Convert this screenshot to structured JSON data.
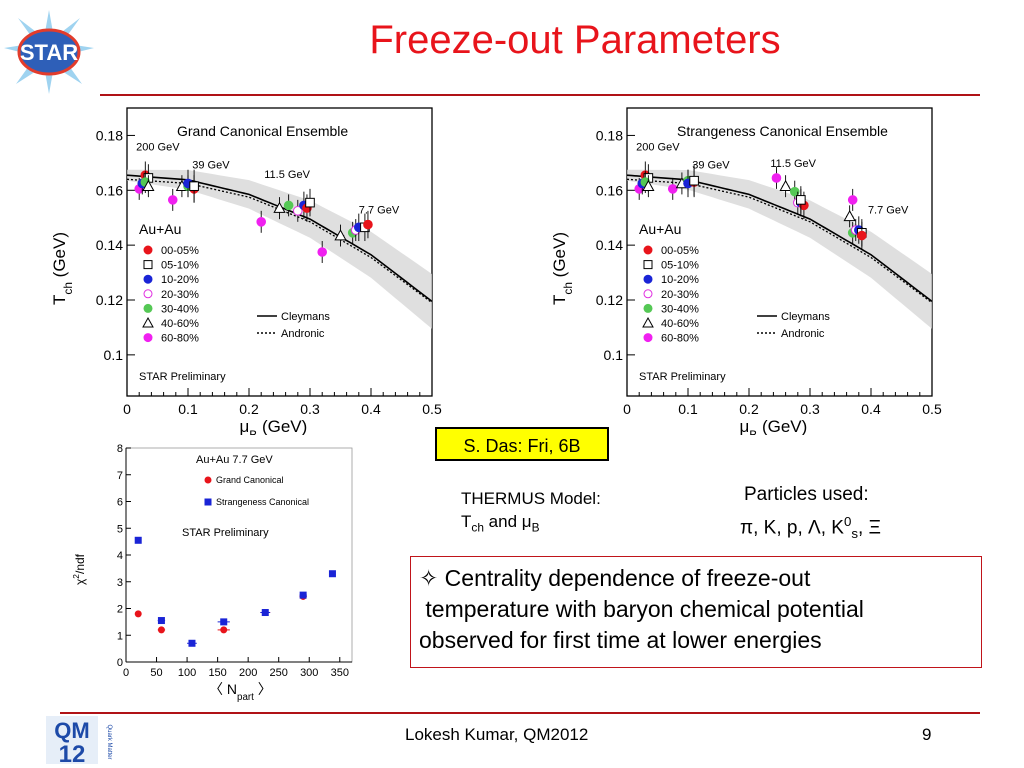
{
  "slide": {
    "title": "Freeze-out Parameters",
    "footer_author": "Lokesh Kumar, QM2012",
    "page_number": "9",
    "accent_color": "#e8141b"
  },
  "logos": {
    "star": "STAR",
    "qm": "QM",
    "qm_year": "12",
    "qm_side": "Quark Matter"
  },
  "talk_box": "S. Das: Fri, 6B",
  "thermus": {
    "line1": "THERMUS Model:",
    "t": "T",
    "t_sub": "ch",
    "and": " and ",
    "mu": "μ",
    "mu_sub": "B"
  },
  "particles": {
    "heading": "Particles used:",
    "p1": "π, K, p, Λ, K",
    "k0_sup": "0",
    "k0_sub": "s",
    "p2": ", Ξ"
  },
  "summary": {
    "bullet": "✧",
    "line1": " Centrality dependence of freeze-out",
    "line2": " temperature with baryon chemical potential",
    "line3": "observed for first time at lower energies"
  },
  "chart_data": [
    {
      "type": "scatter",
      "title": "Grand Canonical Ensemble",
      "xlabel": "μ",
      "xlabel_sub": "B",
      "xlabel_unit": " (GeV)",
      "ylabel": "T",
      "ylabel_sub": "ch",
      "ylabel_unit": " (GeV)",
      "xlim": [
        0,
        0.5
      ],
      "ylim": [
        0.085,
        0.19
      ],
      "xticks": [
        0,
        0.1,
        0.2,
        0.3,
        0.4,
        0.5
      ],
      "xtick_labels": [
        "0",
        "0.1",
        "0.2",
        "0.3",
        "0.4",
        "0.5"
      ],
      "yticks": [
        0.1,
        0.12,
        0.14,
        0.16,
        0.18
      ],
      "ytick_labels": [
        "0.1",
        "0.12",
        "0.14",
        "0.16",
        "0.18"
      ],
      "system": "Au+Au",
      "preliminary": "STAR Preliminary",
      "energy_labels": [
        {
          "text": "200 GeV",
          "x": 0.015,
          "y": 0.1745
        },
        {
          "text": "39 GeV",
          "x": 0.107,
          "y": 0.168
        },
        {
          "text": "11.5 GeV",
          "x": 0.225,
          "y": 0.1645
        },
        {
          "text": "7.7 GeV",
          "x": 0.38,
          "y": 0.1515
        }
      ],
      "legend": {
        "entries": [
          {
            "label": "00-05%",
            "marker": "circle",
            "filled": true,
            "color": "#e8141b"
          },
          {
            "label": "05-10%",
            "marker": "square",
            "filled": false,
            "color": "#000000"
          },
          {
            "label": "10-20%",
            "marker": "circle",
            "filled": true,
            "color": "#1a24d6"
          },
          {
            "label": "20-30%",
            "marker": "circle",
            "filled": false,
            "color": "#e030e0"
          },
          {
            "label": "30-40%",
            "marker": "circle",
            "filled": true,
            "color": "#55c855"
          },
          {
            "label": "40-60%",
            "marker": "triangle",
            "filled": false,
            "color": "#000000"
          },
          {
            "label": "60-80%",
            "marker": "circle",
            "filled": true,
            "color": "#f020f0"
          }
        ],
        "models": [
          {
            "label": "Cleymans",
            "style": "solid"
          },
          {
            "label": "Andronic",
            "style": "dotted"
          }
        ]
      },
      "curve_solid": [
        [
          0,
          0.1655
        ],
        [
          0.1,
          0.1638
        ],
        [
          0.2,
          0.1585
        ],
        [
          0.3,
          0.1495
        ],
        [
          0.4,
          0.1365
        ],
        [
          0.5,
          0.1195
        ]
      ],
      "curve_dotted": [
        [
          0,
          0.164
        ],
        [
          0.1,
          0.1625
        ],
        [
          0.2,
          0.1575
        ],
        [
          0.3,
          0.1485
        ],
        [
          0.4,
          0.1355
        ],
        [
          0.5,
          0.119
        ]
      ],
      "band_width": [
        0.002,
        0.01
      ],
      "points": [
        {
          "x": 0.02,
          "y": 0.1605,
          "c": 6,
          "ex": 0.004,
          "ey": 0.004
        },
        {
          "x": 0.025,
          "y": 0.1625,
          "c": 2,
          "ex": 0.004,
          "ey": 0.004
        },
        {
          "x": 0.03,
          "y": 0.1655,
          "c": 0,
          "ex": 0.004,
          "ey": 0.005
        },
        {
          "x": 0.035,
          "y": 0.1645,
          "c": 1,
          "ex": 0.004,
          "ey": 0.005
        },
        {
          "x": 0.03,
          "y": 0.163,
          "c": 4,
          "ex": 0.004,
          "ey": 0.004
        },
        {
          "x": 0.035,
          "y": 0.1615,
          "c": 5,
          "ex": 0.004,
          "ey": 0.004
        },
        {
          "x": 0.075,
          "y": 0.1565,
          "c": 6,
          "ex": 0.005,
          "ey": 0.004
        },
        {
          "x": 0.09,
          "y": 0.1615,
          "c": 5,
          "ex": 0.004,
          "ey": 0.004
        },
        {
          "x": 0.1,
          "y": 0.1615,
          "c": 4,
          "ex": 0.004,
          "ey": 0.004
        },
        {
          "x": 0.1,
          "y": 0.1625,
          "c": 2,
          "ex": 0.004,
          "ey": 0.005
        },
        {
          "x": 0.11,
          "y": 0.1605,
          "c": 0,
          "ex": 0.004,
          "ey": 0.005
        },
        {
          "x": 0.11,
          "y": 0.1615,
          "c": 1,
          "ex": 0.004,
          "ey": 0.006
        },
        {
          "x": 0.22,
          "y": 0.1485,
          "c": 6,
          "ex": 0.006,
          "ey": 0.004
        },
        {
          "x": 0.25,
          "y": 0.1535,
          "c": 5,
          "ex": 0.006,
          "ey": 0.004
        },
        {
          "x": 0.265,
          "y": 0.1545,
          "c": 4,
          "ex": 0.006,
          "ey": 0.004
        },
        {
          "x": 0.28,
          "y": 0.1525,
          "c": 3,
          "ex": 0.006,
          "ey": 0.004
        },
        {
          "x": 0.29,
          "y": 0.1545,
          "c": 2,
          "ex": 0.006,
          "ey": 0.005
        },
        {
          "x": 0.295,
          "y": 0.1535,
          "c": 0,
          "ex": 0.006,
          "ey": 0.005
        },
        {
          "x": 0.3,
          "y": 0.1555,
          "c": 1,
          "ex": 0.006,
          "ey": 0.005
        },
        {
          "x": 0.32,
          "y": 0.1375,
          "c": 6,
          "ex": 0.006,
          "ey": 0.004
        },
        {
          "x": 0.35,
          "y": 0.1435,
          "c": 5,
          "ex": 0.006,
          "ey": 0.004
        },
        {
          "x": 0.37,
          "y": 0.1445,
          "c": 4,
          "ex": 0.006,
          "ey": 0.004
        },
        {
          "x": 0.375,
          "y": 0.1455,
          "c": 3,
          "ex": 0.006,
          "ey": 0.004
        },
        {
          "x": 0.38,
          "y": 0.1465,
          "c": 2,
          "ex": 0.006,
          "ey": 0.005
        },
        {
          "x": 0.39,
          "y": 0.1465,
          "c": 1,
          "ex": 0.006,
          "ey": 0.005
        },
        {
          "x": 0.395,
          "y": 0.1475,
          "c": 0,
          "ex": 0.006,
          "ey": 0.005
        }
      ]
    },
    {
      "type": "scatter",
      "title": "Strangeness Canonical Ensemble",
      "xlabel": "μ",
      "xlabel_sub": "B",
      "xlabel_unit": " (GeV)",
      "ylabel": "T",
      "ylabel_sub": "ch",
      "ylabel_unit": " (GeV)",
      "xlim": [
        0,
        0.5
      ],
      "ylim": [
        0.085,
        0.19
      ],
      "xticks": [
        0,
        0.1,
        0.2,
        0.3,
        0.4,
        0.5
      ],
      "xtick_labels": [
        "0",
        "0.1",
        "0.2",
        "0.3",
        "0.4",
        "0.5"
      ],
      "yticks": [
        0.1,
        0.12,
        0.14,
        0.16,
        0.18
      ],
      "ytick_labels": [
        "0.1",
        "0.12",
        "0.14",
        "0.16",
        "0.18"
      ],
      "system": "Au+Au",
      "preliminary": "STAR Preliminary",
      "energy_labels": [
        {
          "text": "200 GeV",
          "x": 0.015,
          "y": 0.1745
        },
        {
          "text": "39 GeV",
          "x": 0.107,
          "y": 0.168
        },
        {
          "text": "11.5 GeV",
          "x": 0.235,
          "y": 0.1685
        },
        {
          "text": "7.7 GeV",
          "x": 0.395,
          "y": 0.1515
        }
      ],
      "legend": {
        "entries": [
          {
            "label": "00-05%",
            "marker": "circle",
            "filled": true,
            "color": "#e8141b"
          },
          {
            "label": "05-10%",
            "marker": "square",
            "filled": false,
            "color": "#000000"
          },
          {
            "label": "10-20%",
            "marker": "circle",
            "filled": true,
            "color": "#1a24d6"
          },
          {
            "label": "20-30%",
            "marker": "circle",
            "filled": false,
            "color": "#e030e0"
          },
          {
            "label": "30-40%",
            "marker": "circle",
            "filled": true,
            "color": "#55c855"
          },
          {
            "label": "40-60%",
            "marker": "triangle",
            "filled": false,
            "color": "#000000"
          },
          {
            "label": "60-80%",
            "marker": "circle",
            "filled": true,
            "color": "#f020f0"
          }
        ],
        "models": [
          {
            "label": "Cleymans",
            "style": "solid"
          },
          {
            "label": "Andronic",
            "style": "dotted"
          }
        ]
      },
      "curve_solid": [
        [
          0,
          0.1655
        ],
        [
          0.1,
          0.1638
        ],
        [
          0.2,
          0.1585
        ],
        [
          0.3,
          0.1495
        ],
        [
          0.4,
          0.1365
        ],
        [
          0.5,
          0.1195
        ]
      ],
      "curve_dotted": [
        [
          0,
          0.164
        ],
        [
          0.1,
          0.1625
        ],
        [
          0.2,
          0.1575
        ],
        [
          0.3,
          0.1485
        ],
        [
          0.4,
          0.1355
        ],
        [
          0.5,
          0.119
        ]
      ],
      "band_width": [
        0.002,
        0.01
      ],
      "points": [
        {
          "x": 0.02,
          "y": 0.1605,
          "c": 6,
          "ex": 0.004,
          "ey": 0.004
        },
        {
          "x": 0.025,
          "y": 0.1625,
          "c": 2,
          "ex": 0.004,
          "ey": 0.004
        },
        {
          "x": 0.03,
          "y": 0.1655,
          "c": 0,
          "ex": 0.004,
          "ey": 0.005
        },
        {
          "x": 0.035,
          "y": 0.1645,
          "c": 1,
          "ex": 0.004,
          "ey": 0.005
        },
        {
          "x": 0.03,
          "y": 0.163,
          "c": 4,
          "ex": 0.004,
          "ey": 0.004
        },
        {
          "x": 0.035,
          "y": 0.1615,
          "c": 5,
          "ex": 0.004,
          "ey": 0.004
        },
        {
          "x": 0.075,
          "y": 0.1605,
          "c": 6,
          "ex": 0.005,
          "ey": 0.004
        },
        {
          "x": 0.09,
          "y": 0.1625,
          "c": 5,
          "ex": 0.004,
          "ey": 0.004
        },
        {
          "x": 0.1,
          "y": 0.1635,
          "c": 4,
          "ex": 0.004,
          "ey": 0.004
        },
        {
          "x": 0.1,
          "y": 0.1625,
          "c": 2,
          "ex": 0.004,
          "ey": 0.005
        },
        {
          "x": 0.11,
          "y": 0.163,
          "c": 0,
          "ex": 0.004,
          "ey": 0.005
        },
        {
          "x": 0.11,
          "y": 0.1635,
          "c": 1,
          "ex": 0.004,
          "ey": 0.006
        },
        {
          "x": 0.245,
          "y": 0.1645,
          "c": 6,
          "ex": 0.006,
          "ey": 0.004
        },
        {
          "x": 0.26,
          "y": 0.1615,
          "c": 5,
          "ex": 0.006,
          "ey": 0.004
        },
        {
          "x": 0.275,
          "y": 0.1595,
          "c": 4,
          "ex": 0.006,
          "ey": 0.004
        },
        {
          "x": 0.28,
          "y": 0.1555,
          "c": 3,
          "ex": 0.006,
          "ey": 0.004
        },
        {
          "x": 0.285,
          "y": 0.1555,
          "c": 2,
          "ex": 0.006,
          "ey": 0.005
        },
        {
          "x": 0.29,
          "y": 0.1545,
          "c": 0,
          "ex": 0.006,
          "ey": 0.005
        },
        {
          "x": 0.285,
          "y": 0.1565,
          "c": 1,
          "ex": 0.006,
          "ey": 0.005
        },
        {
          "x": 0.37,
          "y": 0.1565,
          "c": 6,
          "ex": 0.006,
          "ey": 0.004
        },
        {
          "x": 0.365,
          "y": 0.1505,
          "c": 5,
          "ex": 0.006,
          "ey": 0.004
        },
        {
          "x": 0.37,
          "y": 0.1445,
          "c": 4,
          "ex": 0.006,
          "ey": 0.004
        },
        {
          "x": 0.375,
          "y": 0.1455,
          "c": 3,
          "ex": 0.006,
          "ey": 0.004
        },
        {
          "x": 0.38,
          "y": 0.1455,
          "c": 2,
          "ex": 0.006,
          "ey": 0.005
        },
        {
          "x": 0.385,
          "y": 0.1445,
          "c": 1,
          "ex": 0.006,
          "ey": 0.005
        },
        {
          "x": 0.385,
          "y": 0.1435,
          "c": 0,
          "ex": 0.006,
          "ey": 0.005
        }
      ]
    },
    {
      "type": "scatter",
      "title": "Au+Au 7.7 GeV",
      "preliminary": "STAR Preliminary",
      "xlabel": "〈 N",
      "xlabel_sub": "part",
      "xlabel_unit": " 〉",
      "ylabel": "χ",
      "ylabel_sup": "2",
      "ylabel_unit": "/ndf",
      "xlim": [
        0,
        370
      ],
      "ylim": [
        0,
        8
      ],
      "xticks": [
        0,
        50,
        100,
        150,
        200,
        250,
        300,
        350
      ],
      "xtick_labels": [
        "0",
        "50",
        "100",
        "150",
        "200",
        "250",
        "300",
        "350"
      ],
      "yticks": [
        0,
        1,
        2,
        3,
        4,
        5,
        6,
        7,
        8
      ],
      "ytick_labels": [
        "0",
        "1",
        "2",
        "3",
        "4",
        "5",
        "6",
        "7",
        "8"
      ],
      "series": [
        {
          "name": "Grand Canonical",
          "marker": "circle",
          "color": "#e8141b",
          "x": [
            20,
            58,
            160,
            228,
            290
          ],
          "y": [
            1.8,
            1.2,
            1.2,
            1.85,
            2.45
          ],
          "ex": [
            3,
            6,
            10,
            8,
            6
          ]
        },
        {
          "name": "Strangeness Canonical",
          "marker": "square",
          "color": "#1a24d6",
          "x": [
            20,
            58,
            108,
            160,
            228,
            290,
            338
          ],
          "y": [
            4.55,
            1.55,
            0.7,
            1.5,
            1.85,
            2.5,
            3.3
          ],
          "ex": [
            3,
            6,
            8,
            10,
            8,
            6,
            4
          ]
        }
      ]
    }
  ]
}
